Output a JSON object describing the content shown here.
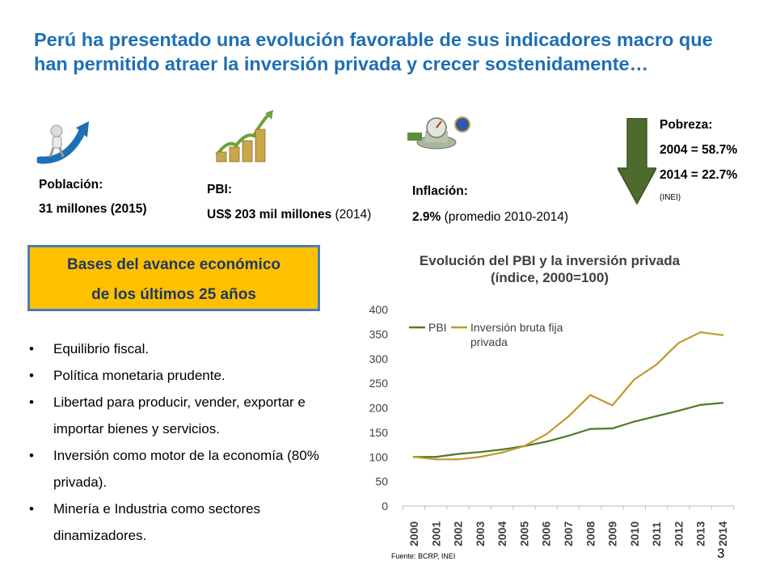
{
  "slide": {
    "title": "Perú ha presentado una evolución favorable de sus indicadores macro que han permitido atraer la inversión privada y crecer sostenidamente…",
    "page_number": "3"
  },
  "indicators": {
    "population": {
      "label": "Población:",
      "value": "31 millones (2015)",
      "icon": "person-with-rising-arrow-icon"
    },
    "gdp": {
      "label": "PBI:",
      "value_bold": "US$ 203 mil millones",
      "value_rest": " (2014)",
      "icon": "coin-stacks-growth-icon"
    },
    "inflation": {
      "label": "Inflación:",
      "value_bold": "2.9%",
      "value_rest": " (promedio 2010-2014)",
      "icon": "scale-and-gauge-icon"
    },
    "poverty": {
      "label": "Pobreza:",
      "y2004": "2004 = 58.7%",
      "y2014": "2014 = 22.7%",
      "source": "(INEI)",
      "icon": "down-arrow-icon"
    }
  },
  "bases": {
    "line1": "Bases del avance económico",
    "line2": "de los últimos 25 años",
    "items": [
      "Equilibrio fiscal.",
      "Política monetaria prudente.",
      "Libertad para producir, vender, exportar e importar bienes y servicios.",
      "Inversión como motor de la economía  (80% privada).",
      "Minería e Industria como sectores dinamizadores."
    ]
  },
  "colors": {
    "title_blue": "#1f6fb4",
    "box_gold": "#ffc000",
    "pbi_green": "#4f7a28",
    "inversion_gold": "#bf9a2a",
    "arrow_green": "#4e6b2e"
  },
  "chart_data": {
    "type": "line",
    "title": "Evolución del PBI y la inversión privada\n(índice, 2000=100)",
    "title_line1": "Evolución del PBI y la inversión privada",
    "title_line2": "(índice, 2000=100)",
    "categories": [
      "2000",
      "2001",
      "2002",
      "2003",
      "2004",
      "2005",
      "2006",
      "2007",
      "2008",
      "2009",
      "2010",
      "2011",
      "2012",
      "2013",
      "2014"
    ],
    "series": [
      {
        "name": "PBI",
        "values": [
          100,
          100,
          106,
          110,
          115,
          122,
          131,
          143,
          157,
          158,
          172,
          183,
          194,
          206,
          210
        ]
      },
      {
        "name": "Inversión bruta fija privada",
        "values": [
          100,
          95,
          95,
          100,
          109,
          122,
          146,
          182,
          226,
          205,
          258,
          288,
          332,
          354,
          348
        ]
      }
    ],
    "legend_series2_line1": "Inversión bruta fija",
    "legend_series2_line2": "privada",
    "yticks": [
      0,
      50,
      100,
      150,
      200,
      250,
      300,
      350,
      400
    ],
    "ylim": [
      0,
      400
    ],
    "grid": false,
    "legend": "top-left",
    "source": "Fuente: BCRP, INEI"
  }
}
